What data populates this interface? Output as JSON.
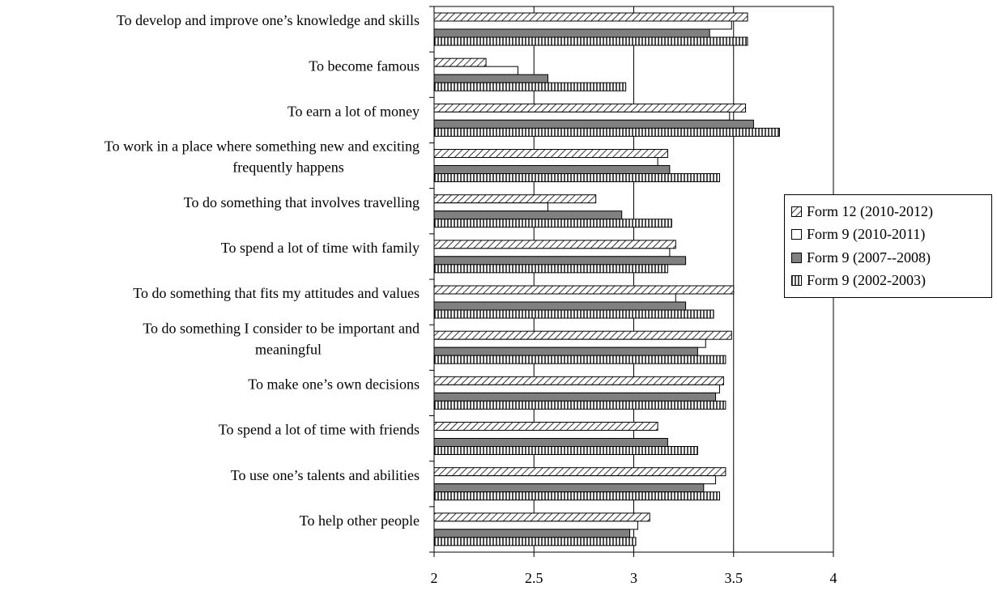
{
  "chart_data": {
    "type": "bar",
    "orientation": "horizontal",
    "categories": [
      [
        "To develop and improve one’s knowledge and skills"
      ],
      [
        "To become famous"
      ],
      [
        "To earn a lot of money"
      ],
      [
        "To work in a place where something new and exciting",
        "frequently happens"
      ],
      [
        "To do something that involves travelling"
      ],
      [
        "To spend a lot of time with family"
      ],
      [
        "To do something that fits my attitudes and values"
      ],
      [
        "To do something I consider to be important and",
        "meaningful"
      ],
      [
        "To make one’s own decisions"
      ],
      [
        "To spend a lot of time with friends"
      ],
      [
        "To use one’s talents and abilities"
      ],
      [
        "To help other people"
      ]
    ],
    "series": [
      {
        "name": "Form 12 (2010-2012)",
        "pattern": "diagonal",
        "values": [
          3.57,
          2.26,
          3.56,
          3.17,
          2.81,
          3.21,
          3.5,
          3.49,
          3.45,
          3.12,
          3.46,
          3.08
        ]
      },
      {
        "name": "Form 9 (2010-2011)",
        "pattern": "white",
        "values": [
          3.49,
          2.42,
          3.48,
          3.12,
          2.57,
          3.18,
          3.21,
          3.36,
          3.43,
          3.0,
          3.41,
          3.02
        ]
      },
      {
        "name": "Form 9 (2007--2008)",
        "pattern": "gray",
        "values": [
          3.38,
          2.57,
          3.6,
          3.18,
          2.94,
          3.26,
          3.26,
          3.32,
          3.41,
          3.17,
          3.35,
          2.98
        ]
      },
      {
        "name": "Form 9 (2002-2003)",
        "pattern": "vertical",
        "values": [
          3.57,
          2.96,
          3.73,
          3.43,
          3.19,
          3.17,
          3.4,
          3.46,
          3.46,
          3.32,
          3.43,
          3.01
        ]
      }
    ],
    "xlim": [
      2,
      4
    ],
    "xticks": [
      "2",
      "2.5",
      "3",
      "3.5",
      "4"
    ],
    "grid": "vertical",
    "legend_position": "right",
    "colors": {
      "gray_fill": "#808080",
      "line": "#000000",
      "background": "#ffffff"
    }
  }
}
